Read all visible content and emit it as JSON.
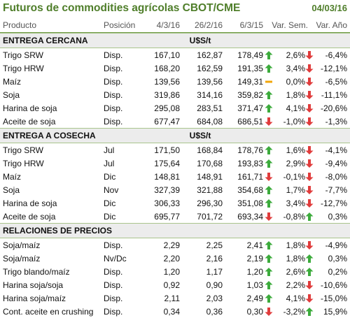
{
  "header": {
    "title": "Futuros de commodities agrícolas CBOT/CME",
    "date": "04/03/16"
  },
  "columns": {
    "product": "Producto",
    "position": "Posición",
    "d1": "4/3/16",
    "d2": "26/2/16",
    "d3": "6/3/15",
    "var_week": "Var. Sem.",
    "var_year": "Var. Año"
  },
  "colors": {
    "title": "#4f7e2a",
    "up": "#3cab3c",
    "down": "#e03c3c",
    "flat": "#f2a60a"
  },
  "sections": [
    {
      "name": "ENTREGA CERCANA",
      "unit": "U$S/t",
      "rows": [
        {
          "product": "Trigo SRW",
          "position": "Disp.",
          "d1": "167,10",
          "d2": "162,87",
          "d3": "178,49",
          "i1": "up",
          "var_week": "2,6%",
          "i2": "down",
          "var_year": "-6,4%"
        },
        {
          "product": "Trigo HRW",
          "position": "Disp.",
          "d1": "168,20",
          "d2": "162,59",
          "d3": "191,35",
          "i1": "up",
          "var_week": "3,4%",
          "i2": "down",
          "var_year": "-12,1%"
        },
        {
          "product": "Maíz",
          "position": "Disp.",
          "d1": "139,56",
          "d2": "139,56",
          "d3": "149,31",
          "i1": "flat",
          "var_week": "0,0%",
          "i2": "down",
          "var_year": "-6,5%"
        },
        {
          "product": "Soja",
          "position": "Disp.",
          "d1": "319,86",
          "d2": "314,16",
          "d3": "359,82",
          "i1": "up",
          "var_week": "1,8%",
          "i2": "down",
          "var_year": "-11,1%"
        },
        {
          "product": "Harina de soja",
          "position": "Disp.",
          "d1": "295,08",
          "d2": "283,51",
          "d3": "371,47",
          "i1": "up",
          "var_week": "4,1%",
          "i2": "down",
          "var_year": "-20,6%"
        },
        {
          "product": "Aceite de soja",
          "position": "Disp.",
          "d1": "677,47",
          "d2": "684,08",
          "d3": "686,51",
          "i1": "down",
          "var_week": "-1,0%",
          "i2": "down",
          "var_year": "-1,3%"
        }
      ]
    },
    {
      "name": "ENTREGA A COSECHA",
      "unit": "U$S/t",
      "rows": [
        {
          "product": "Trigo SRW",
          "position": "Jul",
          "d1": "171,50",
          "d2": "168,84",
          "d3": "178,76",
          "i1": "up",
          "var_week": "1,6%",
          "i2": "down",
          "var_year": "-4,1%"
        },
        {
          "product": "Trigo HRW",
          "position": "Jul",
          "d1": "175,64",
          "d2": "170,68",
          "d3": "193,83",
          "i1": "up",
          "var_week": "2,9%",
          "i2": "down",
          "var_year": "-9,4%"
        },
        {
          "product": "Maíz",
          "position": "Dic",
          "d1": "148,81",
          "d2": "148,91",
          "d3": "161,71",
          "i1": "down",
          "var_week": "-0,1%",
          "i2": "down",
          "var_year": "-8,0%"
        },
        {
          "product": "Soja",
          "position": "Nov",
          "d1": "327,39",
          "d2": "321,88",
          "d3": "354,68",
          "i1": "up",
          "var_week": "1,7%",
          "i2": "down",
          "var_year": "-7,7%"
        },
        {
          "product": "Harina de soja",
          "position": "Dic",
          "d1": "306,33",
          "d2": "296,30",
          "d3": "351,08",
          "i1": "up",
          "var_week": "3,4%",
          "i2": "down",
          "var_year": "-12,7%"
        },
        {
          "product": "Aceite de soja",
          "position": "Dic",
          "d1": "695,77",
          "d2": "701,72",
          "d3": "693,34",
          "i1": "down",
          "var_week": "-0,8%",
          "i2": "up",
          "var_year": "0,3%"
        }
      ]
    },
    {
      "name": "RELACIONES DE PRECIOS",
      "unit": "",
      "rows": [
        {
          "product": "Soja/maíz",
          "position": "Disp.",
          "d1": "2,29",
          "d2": "2,25",
          "d3": "2,41",
          "i1": "up",
          "var_week": "1,8%",
          "i2": "down",
          "var_year": "-4,9%"
        },
        {
          "product": "Soja/maíz",
          "position": "Nv/Dc",
          "d1": "2,20",
          "d2": "2,16",
          "d3": "2,19",
          "i1": "up",
          "var_week": "1,8%",
          "i2": "up",
          "var_year": "0,3%"
        },
        {
          "product": "Trigo blando/maíz",
          "position": "Disp.",
          "d1": "1,20",
          "d2": "1,17",
          "d3": "1,20",
          "i1": "up",
          "var_week": "2,6%",
          "i2": "up",
          "var_year": "0,2%"
        },
        {
          "product": "Harina soja/soja",
          "position": "Disp.",
          "d1": "0,92",
          "d2": "0,90",
          "d3": "1,03",
          "i1": "up",
          "var_week": "2,2%",
          "i2": "down",
          "var_year": "-10,6%"
        },
        {
          "product": "Harina soja/maíz",
          "position": "Disp.",
          "d1": "2,11",
          "d2": "2,03",
          "d3": "2,49",
          "i1": "up",
          "var_week": "4,1%",
          "i2": "down",
          "var_year": "-15,0%"
        },
        {
          "product": "Cont. aceite en crushing",
          "position": "Disp.",
          "d1": "0,34",
          "d2": "0,36",
          "d3": "0,30",
          "i1": "down",
          "var_week": "-3,2%",
          "i2": "up",
          "var_year": "15,9%"
        }
      ]
    }
  ]
}
